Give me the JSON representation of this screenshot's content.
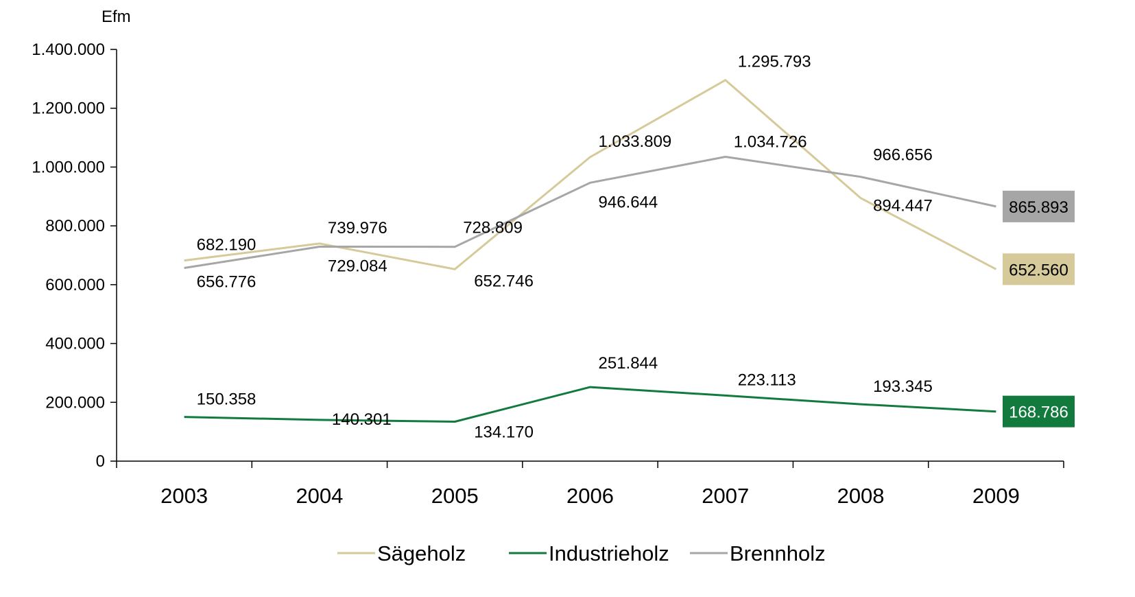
{
  "chart_data": {
    "type": "line",
    "title": "",
    "xlabel": "",
    "ylabel": "Efm",
    "categories": [
      "2003",
      "2004",
      "2005",
      "2006",
      "2007",
      "2008",
      "2009"
    ],
    "ylim": [
      0,
      1400000
    ],
    "y_ticks": [
      0,
      200000,
      400000,
      600000,
      800000,
      1000000,
      1200000,
      1400000
    ],
    "y_tick_labels": [
      "0",
      "200.000",
      "400.000",
      "600.000",
      "800.000",
      "1.000.000",
      "1.200.000",
      "1.400.000"
    ],
    "grid": false,
    "legend_position": "bottom",
    "series": [
      {
        "name": "Sägeholz",
        "color": "#d6c99a",
        "values": [
          682190,
          739976,
          652746,
          1033809,
          1295793,
          894447,
          652560
        ],
        "labels": [
          "682.190",
          "739.976",
          "652.746",
          "1.033.809",
          "1.295.793",
          "894.447",
          "652.560"
        ]
      },
      {
        "name": "Industrieholz",
        "color": "#137a3e",
        "values": [
          150358,
          140301,
          134170,
          251844,
          223113,
          193345,
          168786
        ],
        "labels": [
          "150.358",
          "140.301",
          "134.170",
          "251.844",
          "223.113",
          "193.345",
          "168.786"
        ]
      },
      {
        "name": "Brennholz",
        "color": "#a6a6a6",
        "values": [
          656776,
          729084,
          728809,
          946644,
          1034726,
          966656,
          865893
        ],
        "labels": [
          "656.776",
          "729.084",
          "728.809",
          "946.644",
          "1.034.726",
          "966.656",
          "865.893"
        ]
      }
    ]
  }
}
